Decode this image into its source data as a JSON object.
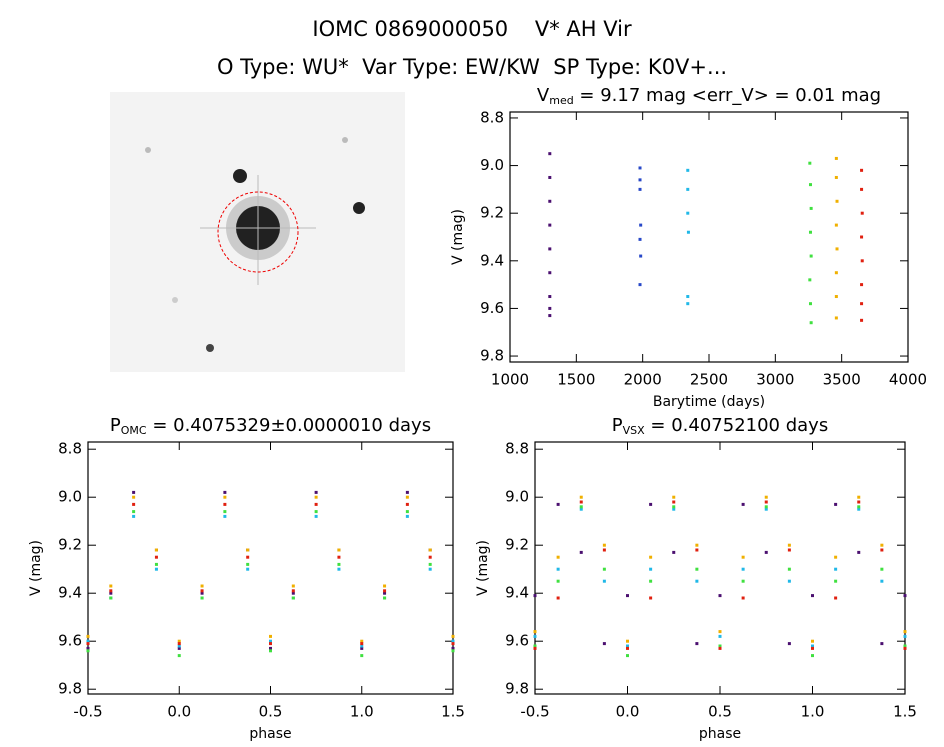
{
  "header": {
    "title": "IOMC 0869000050    V* AH Vir",
    "subtitle": "O Type: WU*  Var Type: EW/KW  SP Type: K0V+..."
  },
  "chart_data": [
    {
      "type": "scatter",
      "title": "V",
      "title_sub": "med",
      "title_rest": " = 9.17 mag <err_V> = 0.01 mag",
      "xlabel": "Barytime (days)",
      "ylabel": "V (mag)",
      "xlim": [
        1000,
        4000
      ],
      "xticks": [
        1000,
        1500,
        2000,
        2500,
        3000,
        3500,
        4000
      ],
      "ylim": [
        8.775,
        9.825
      ],
      "y_inverted": true,
      "yticks": [
        8.8,
        {
          "value": 9,
          "label": "9.0"
        },
        9.2,
        9.4,
        9.6,
        9.8
      ],
      "series": [
        {
          "color": "#4b1070",
          "x": [
            1300,
            1300,
            1300,
            1300,
            1300,
            1300,
            1300,
            1300,
            1300
          ],
          "values": [
            8.95,
            9.05,
            9.15,
            9.25,
            9.35,
            9.45,
            9.55,
            9.6,
            9.63
          ]
        },
        {
          "color": "#2848c8",
          "x": [
            1980,
            1980,
            1980,
            1985,
            1980,
            1985,
            1980
          ],
          "values": [
            9.01,
            9.06,
            9.1,
            9.25,
            9.31,
            9.38,
            9.5
          ]
        },
        {
          "color": "#20b8e8",
          "x": [
            2340,
            2340,
            2340,
            2345,
            2340,
            2340
          ],
          "values": [
            9.02,
            9.1,
            9.2,
            9.28,
            9.55,
            9.58
          ]
        },
        {
          "color": "#40e040",
          "x": [
            3260,
            3265,
            3270,
            3265,
            3270,
            3260,
            3265,
            3270
          ],
          "values": [
            8.99,
            9.08,
            9.18,
            9.28,
            9.38,
            9.48,
            9.58,
            9.66
          ]
        },
        {
          "color": "#f0b000",
          "x": [
            3460,
            3460,
            3465,
            3460,
            3465,
            3460,
            3460,
            3460
          ],
          "values": [
            8.97,
            9.05,
            9.15,
            9.25,
            9.35,
            9.45,
            9.55,
            9.64
          ]
        },
        {
          "color": "#e02010",
          "x": [
            3650,
            3650,
            3655,
            3650,
            3655,
            3650,
            3650,
            3650
          ],
          "values": [
            9.02,
            9.1,
            9.2,
            9.3,
            9.4,
            9.5,
            9.58,
            9.65
          ]
        }
      ]
    },
    {
      "type": "scatter",
      "title": "P",
      "title_sub": "OMC",
      "title_rest": " = 0.4075329±0.0000010 days",
      "xlabel": "phase",
      "ylabel": "V (mag)",
      "xlim": [
        -0.5,
        1.5
      ],
      "xticks": [
        -0.5,
        {
          "value": 0,
          "label": "0.0"
        },
        0.5,
        {
          "value": 1,
          "label": "1.0"
        },
        1.5
      ],
      "ylim": [
        8.77,
        9.82
      ],
      "y_inverted": true,
      "yticks": [
        8.8,
        {
          "value": 9,
          "label": "9.0"
        },
        9.2,
        9.4,
        9.6,
        9.8
      ],
      "x": [
        -0.5,
        -0.375,
        -0.25,
        -0.125,
        0,
        0.125,
        0.25,
        0.375,
        0.5,
        0.625,
        0.75,
        0.875,
        1,
        1.125,
        1.25,
        1.375,
        1.5
      ],
      "series": [
        {
          "color": "#4b1070",
          "values": [
            9.63,
            9.4,
            8.98,
            9.22,
            9.63,
            9.4,
            8.98,
            9.22,
            9.63,
            9.4,
            8.98,
            9.22,
            9.63,
            9.4,
            8.98,
            9.22,
            9.63
          ]
        },
        {
          "color": "#20b8e8",
          "values": [
            9.6,
            9.42,
            9.08,
            9.3,
            9.62,
            9.42,
            9.08,
            9.3,
            9.6,
            9.42,
            9.08,
            9.3,
            9.62,
            9.42,
            9.08,
            9.3,
            9.6
          ]
        },
        {
          "color": "#40e040",
          "values": [
            9.64,
            9.42,
            9.06,
            9.28,
            9.66,
            9.42,
            9.06,
            9.28,
            9.64,
            9.42,
            9.06,
            9.28,
            9.66,
            9.42,
            9.06,
            9.28,
            9.64
          ]
        },
        {
          "color": "#f0b000",
          "values": [
            9.58,
            9.37,
            9.0,
            9.22,
            9.6,
            9.37,
            9.0,
            9.22,
            9.58,
            9.37,
            9.0,
            9.22,
            9.6,
            9.37,
            9.0,
            9.22,
            9.58
          ]
        },
        {
          "color": "#e02010",
          "values": [
            9.61,
            9.39,
            9.03,
            9.25,
            9.61,
            9.39,
            9.03,
            9.25,
            9.61,
            9.39,
            9.03,
            9.25,
            9.61,
            9.39,
            9.03,
            9.25,
            9.61
          ]
        }
      ]
    },
    {
      "type": "scatter",
      "title": "P",
      "title_sub": "VSX",
      "title_rest": " = 0.40752100 days",
      "xlabel": "phase",
      "ylabel": "V (mag)",
      "xlim": [
        -0.5,
        1.5
      ],
      "xticks": [
        -0.5,
        {
          "value": 0,
          "label": "0.0"
        },
        0.5,
        {
          "value": 1,
          "label": "1.0"
        },
        1.5
      ],
      "ylim": [
        8.77,
        9.82
      ],
      "y_inverted": true,
      "yticks": [
        8.8,
        {
          "value": 9,
          "label": "9.0"
        },
        9.2,
        9.4,
        9.6,
        9.8
      ],
      "x": [
        -0.5,
        -0.375,
        -0.25,
        -0.125,
        0,
        0.125,
        0.25,
        0.375,
        0.5,
        0.625,
        0.75,
        0.875,
        1,
        1.125,
        1.25,
        1.375,
        1.5
      ],
      "series": [
        {
          "color": "#4b1070",
          "values": [
            9.41,
            9.03,
            9.23,
            9.61,
            9.41,
            9.03,
            9.23,
            9.61,
            9.41,
            9.03,
            9.23,
            9.61,
            9.41,
            9.03,
            9.23,
            9.61,
            9.41
          ]
        },
        {
          "color": "#20b8e8",
          "values": [
            9.58,
            9.3,
            9.05,
            9.35,
            9.62,
            9.3,
            9.05,
            9.35,
            9.58,
            9.3,
            9.05,
            9.35,
            9.62,
            9.3,
            9.05,
            9.35,
            9.58
          ]
        },
        {
          "color": "#40e040",
          "values": [
            9.62,
            9.35,
            9.04,
            9.3,
            9.66,
            9.35,
            9.04,
            9.3,
            9.62,
            9.35,
            9.04,
            9.3,
            9.66,
            9.35,
            9.04,
            9.3,
            9.62
          ]
        },
        {
          "color": "#f0b000",
          "values": [
            9.56,
            9.25,
            9.0,
            9.2,
            9.6,
            9.25,
            9.0,
            9.2,
            9.56,
            9.25,
            9.0,
            9.2,
            9.6,
            9.25,
            9.0,
            9.2,
            9.56
          ]
        },
        {
          "color": "#e02010",
          "values": [
            9.63,
            9.42,
            9.02,
            9.22,
            9.63,
            9.42,
            9.02,
            9.22,
            9.63,
            9.42,
            9.02,
            9.22,
            9.63,
            9.42,
            9.02,
            9.22,
            9.63
          ]
        }
      ]
    }
  ]
}
